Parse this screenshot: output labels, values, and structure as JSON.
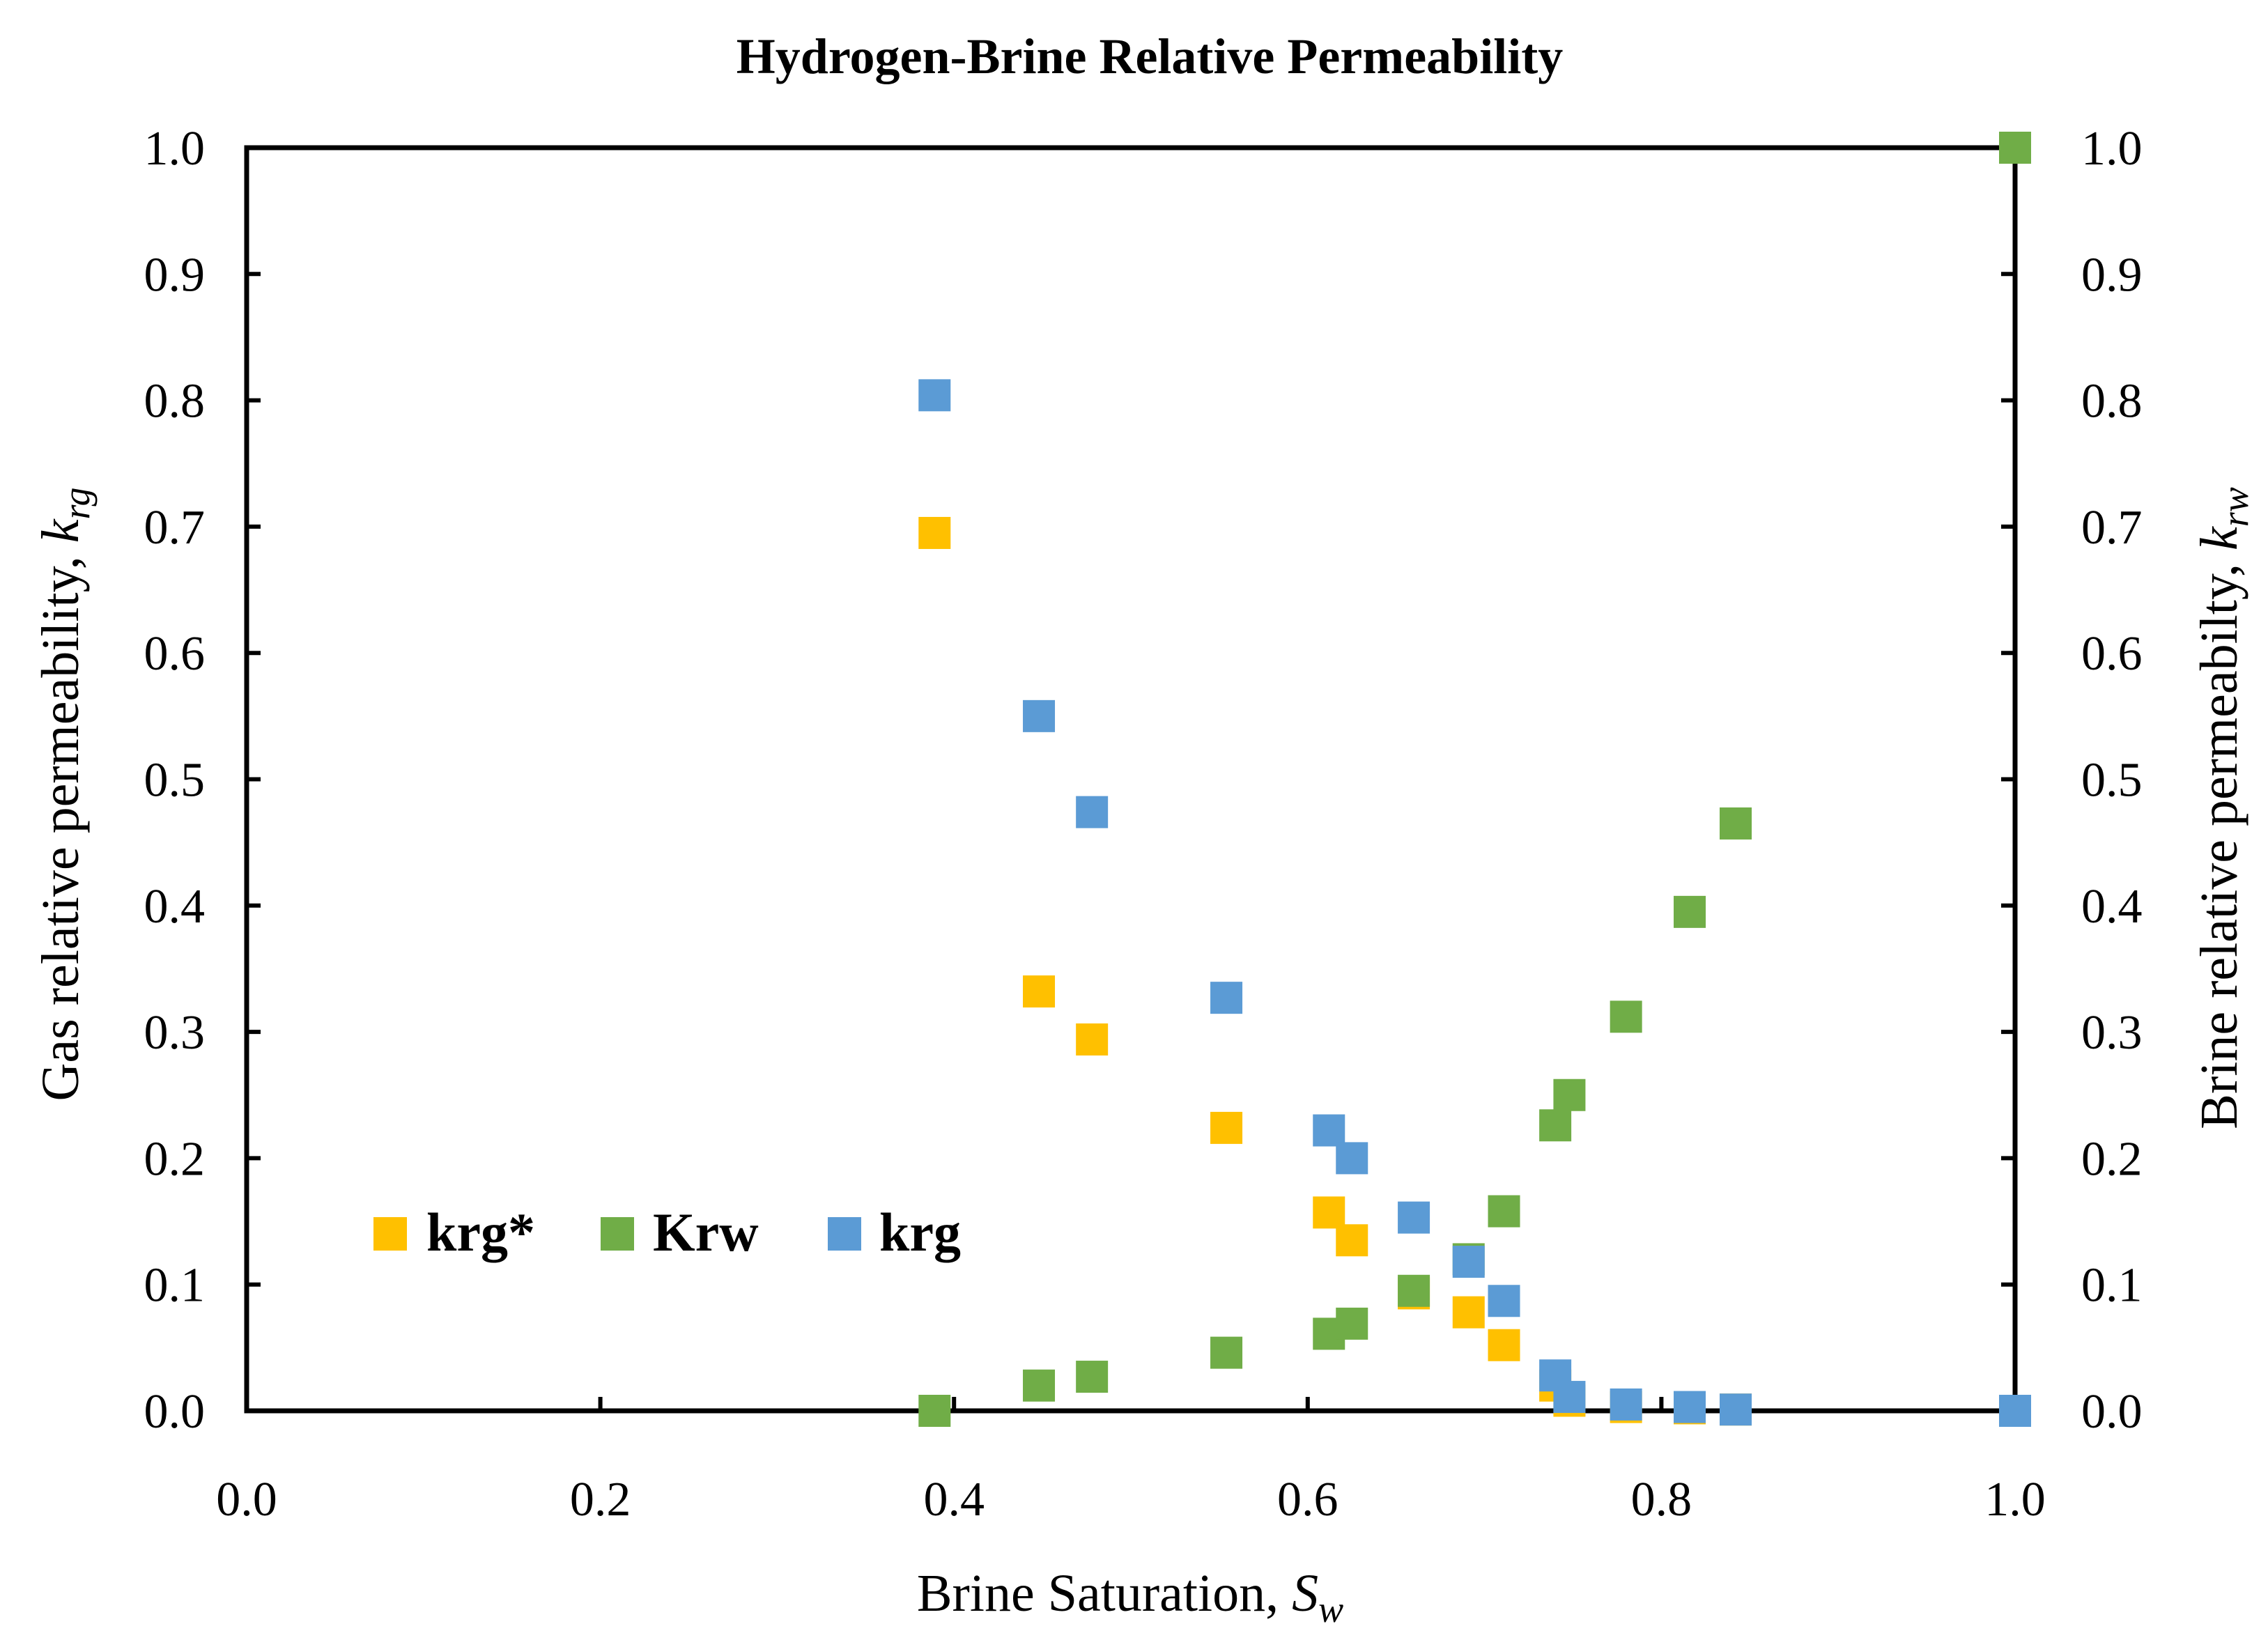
{
  "chart_data": {
    "type": "scatter",
    "title": "Hydrogen-Brine Relative Permeability",
    "xlabel": {
      "main": "Brine Saturation, ",
      "var": "S",
      "sub": "w"
    },
    "ylabel_left": {
      "main": "Gas relative permeability, ",
      "var": "k",
      "sub": "rg"
    },
    "ylabel_right": {
      "main": "Brine relative permeabilty, ",
      "var": "k",
      "sub": "rw"
    },
    "xlim": [
      0,
      1
    ],
    "ylim": [
      0,
      1
    ],
    "x_ticks": [
      "0.0",
      "0.2",
      "0.4",
      "0.6",
      "0.8",
      "1.0"
    ],
    "y_ticks": [
      "0.0",
      "0.1",
      "0.2",
      "0.3",
      "0.4",
      "0.5",
      "0.6",
      "0.7",
      "0.8",
      "0.9",
      "1.0"
    ],
    "legend_position": "lower-left",
    "series": [
      {
        "name": "krg*",
        "color": "#FFC000",
        "points": [
          [
            0.389,
            0.695
          ],
          [
            0.448,
            0.332
          ],
          [
            0.478,
            0.294
          ],
          [
            0.554,
            0.224
          ],
          [
            0.612,
            0.157
          ],
          [
            0.625,
            0.135
          ],
          [
            0.66,
            0.093
          ],
          [
            0.691,
            0.078
          ],
          [
            0.711,
            0.052
          ],
          [
            0.74,
            0.02
          ],
          [
            0.748,
            0.008
          ],
          [
            0.78,
            0.003
          ],
          [
            0.816,
            0.002
          ],
          [
            0.842,
            0.001
          ],
          [
            1.0,
            0.0
          ]
        ]
      },
      {
        "name": "Krw",
        "color": "#70AD47",
        "points": [
          [
            0.389,
            0.0
          ],
          [
            0.448,
            0.02
          ],
          [
            0.478,
            0.027
          ],
          [
            0.554,
            0.046
          ],
          [
            0.612,
            0.061
          ],
          [
            0.625,
            0.069
          ],
          [
            0.66,
            0.095
          ],
          [
            0.691,
            0.12
          ],
          [
            0.711,
            0.158
          ],
          [
            0.74,
            0.226
          ],
          [
            0.748,
            0.25
          ],
          [
            0.78,
            0.312
          ],
          [
            0.816,
            0.395
          ],
          [
            0.842,
            0.465
          ],
          [
            1.0,
            1.0
          ]
        ]
      },
      {
        "name": "krg",
        "color": "#5B9BD5",
        "points": [
          [
            0.389,
            0.804
          ],
          [
            0.448,
            0.55
          ],
          [
            0.478,
            0.474
          ],
          [
            0.554,
            0.327
          ],
          [
            0.612,
            0.222
          ],
          [
            0.625,
            0.2
          ],
          [
            0.66,
            0.153
          ],
          [
            0.691,
            0.118
          ],
          [
            0.711,
            0.087
          ],
          [
            0.74,
            0.028
          ],
          [
            0.748,
            0.011
          ],
          [
            0.78,
            0.005
          ],
          [
            0.816,
            0.003
          ],
          [
            0.842,
            0.001
          ],
          [
            1.0,
            0.0
          ]
        ]
      }
    ]
  }
}
